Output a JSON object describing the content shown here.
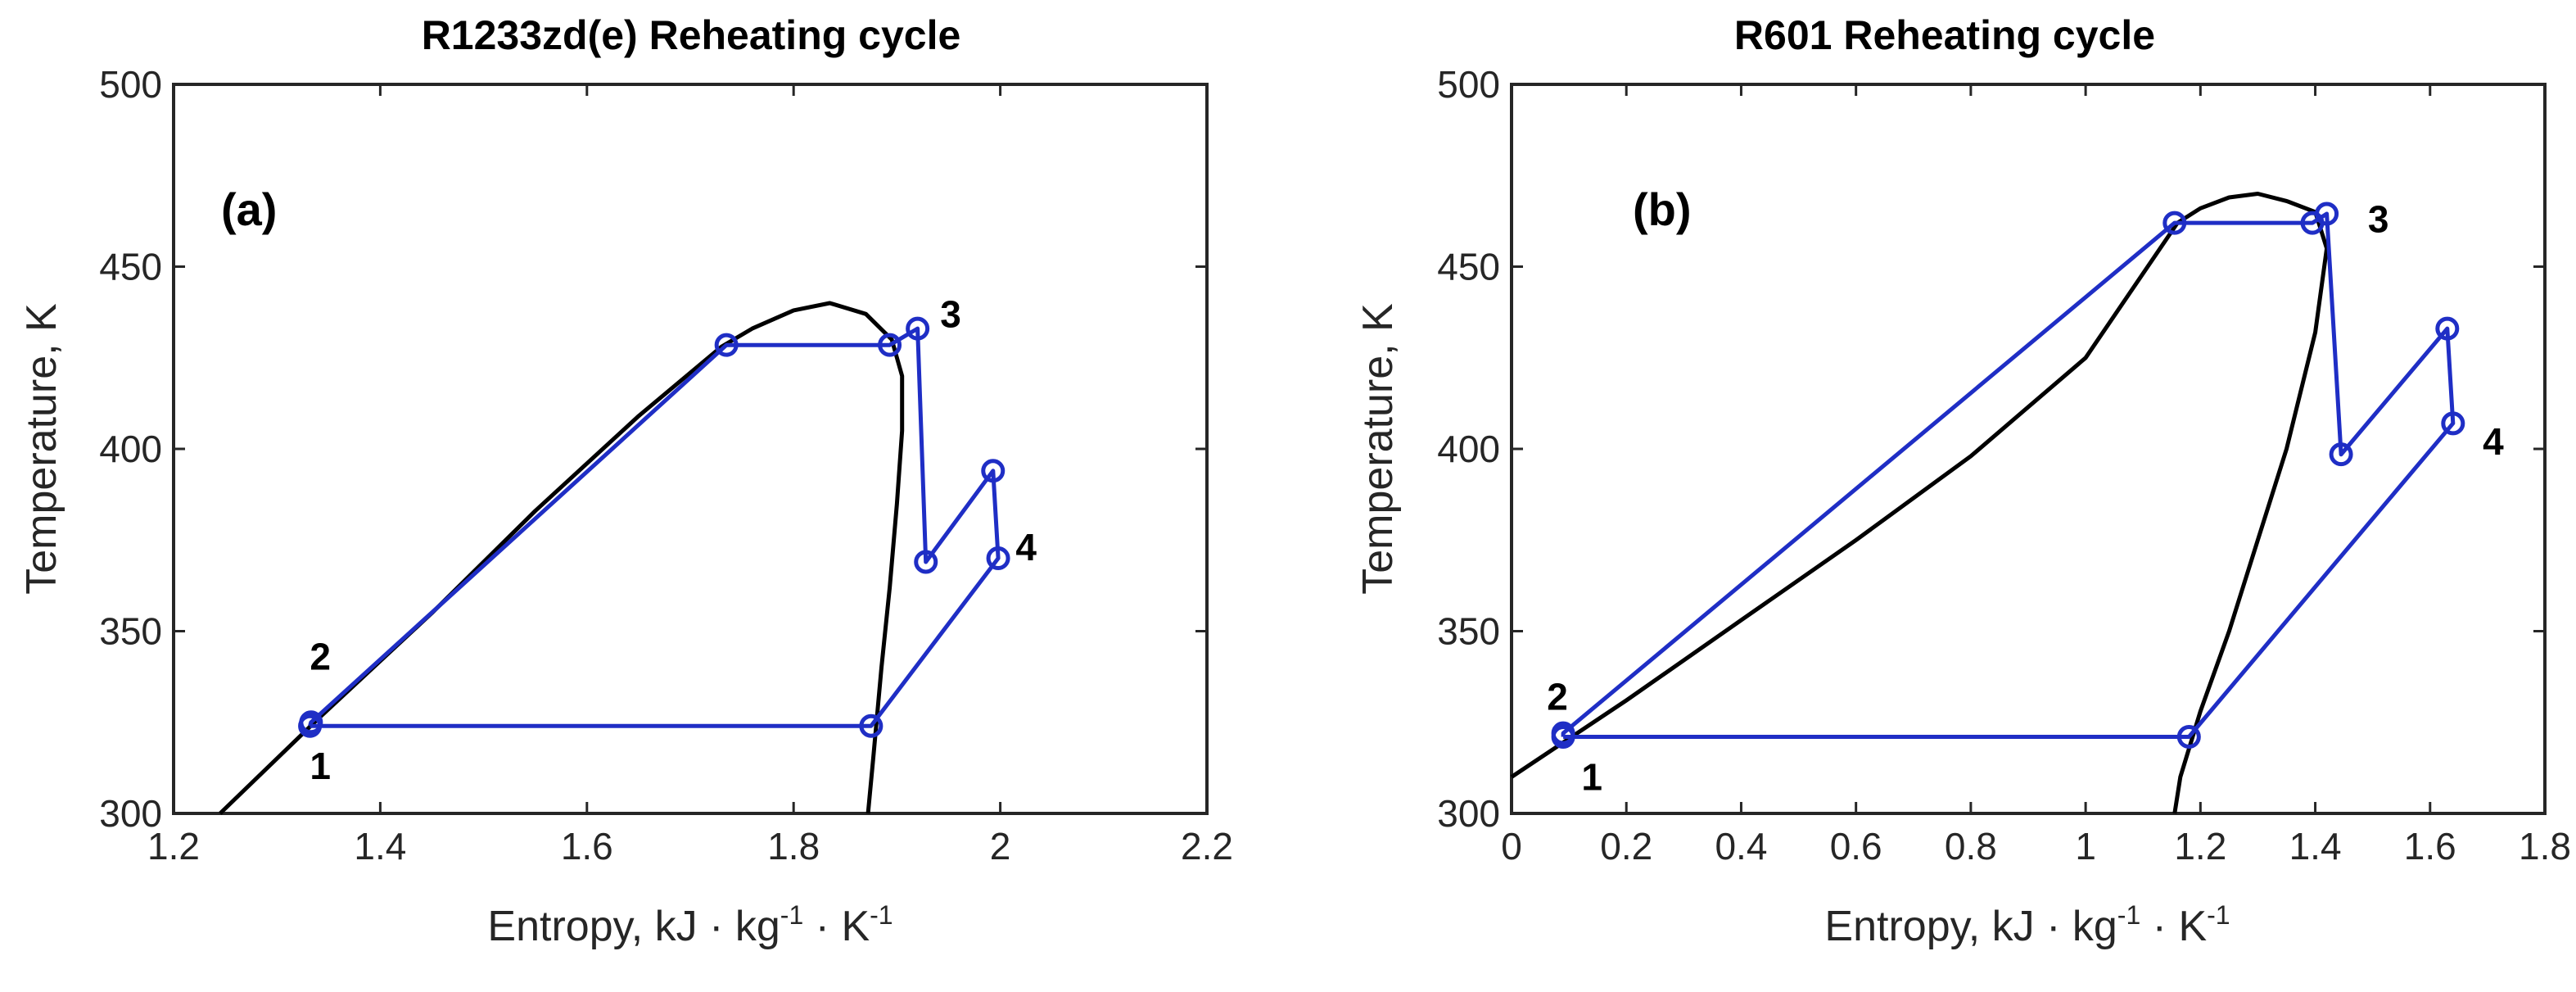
{
  "chart_data": [
    {
      "type": "line",
      "title": "R1233zd(e) Reheating cycle",
      "panel_label": "(a)",
      "ylabel": "Temperature, K",
      "xlabel": {
        "prefix": "Entropy, kJ · kg",
        "exp1": "-1",
        "mid": " · K",
        "exp2": "-1"
      },
      "xlim": [
        1.2,
        2.2
      ],
      "ylim": [
        300,
        500
      ],
      "xticks": [
        1.2,
        1.4,
        1.6,
        1.8,
        2.0,
        2.2
      ],
      "xtick_labels": [
        "1.2",
        "1.4",
        "1.6",
        "1.8",
        "2",
        "2.2"
      ],
      "yticks": [
        300,
        350,
        400,
        450,
        500
      ],
      "ytick_labels": [
        "300",
        "350",
        "400",
        "450",
        "500"
      ],
      "series": [
        {
          "name": "saturation dome",
          "color": "#000000",
          "points": [
            [
              1.245,
              300
            ],
            [
              1.34,
              326
            ],
            [
              1.45,
              355
            ],
            [
              1.55,
              383
            ],
            [
              1.65,
              409
            ],
            [
              1.73,
              428
            ],
            [
              1.76,
              433
            ],
            [
              1.8,
              438
            ],
            [
              1.835,
              440
            ],
            [
              1.87,
              437
            ],
            [
              1.895,
              430
            ],
            [
              1.905,
              420
            ],
            [
              1.905,
              405
            ],
            [
              1.9,
              385
            ],
            [
              1.893,
              362
            ],
            [
              1.885,
              340
            ],
            [
              1.877,
              315
            ],
            [
              1.872,
              300
            ]
          ]
        },
        {
          "name": "reheating cycle",
          "color": "#1f2ec5",
          "markers": [
            [
              1.332,
              324
            ],
            [
              1.333,
              325
            ],
            [
              1.735,
              428.5
            ],
            [
              1.893,
              428.5
            ],
            [
              1.92,
              433
            ],
            [
              1.928,
              369
            ],
            [
              1.993,
              394
            ],
            [
              1.998,
              370
            ],
            [
              1.875,
              324
            ]
          ],
          "points": [
            [
              1.332,
              324
            ],
            [
              1.333,
              325
            ],
            [
              1.735,
              428.5
            ],
            [
              1.893,
              428.5
            ],
            [
              1.92,
              433
            ],
            [
              1.928,
              369
            ],
            [
              1.993,
              394
            ],
            [
              1.998,
              370
            ],
            [
              1.875,
              324
            ],
            [
              1.332,
              324
            ]
          ]
        }
      ],
      "point_labels": [
        {
          "text": "1",
          "x": 1.342,
          "y": 313
        },
        {
          "text": "2",
          "x": 1.342,
          "y": 343
        },
        {
          "text": "3",
          "x": 1.952,
          "y": 437
        },
        {
          "text": "4",
          "x": 2.025,
          "y": 373
        }
      ]
    },
    {
      "type": "line",
      "title": "R601 Reheating cycle",
      "panel_label": "(b)",
      "ylabel": "Temperature, K",
      "xlabel": {
        "prefix": "Entropy, kJ · kg",
        "exp1": "-1",
        "mid": " · K",
        "exp2": "-1"
      },
      "xlim": [
        0,
        1.8
      ],
      "ylim": [
        300,
        500
      ],
      "xticks": [
        0,
        0.2,
        0.4,
        0.6,
        0.8,
        1.0,
        1.2,
        1.4,
        1.6,
        1.8
      ],
      "xtick_labels": [
        "0",
        "0.2",
        "0.4",
        "0.6",
        "0.8",
        "1",
        "1.2",
        "1.4",
        "1.6",
        "1.8"
      ],
      "yticks": [
        300,
        350,
        400,
        450,
        500
      ],
      "ytick_labels": [
        "300",
        "350",
        "400",
        "450",
        "500"
      ],
      "series": [
        {
          "name": "saturation dome",
          "color": "#000000",
          "points": [
            [
              0,
              310
            ],
            [
              0.2,
              331
            ],
            [
              0.4,
              353
            ],
            [
              0.6,
              375
            ],
            [
              0.8,
              398
            ],
            [
              1.0,
              425
            ],
            [
              1.16,
              462
            ],
            [
              1.2,
              466
            ],
            [
              1.25,
              469
            ],
            [
              1.3,
              470
            ],
            [
              1.35,
              468
            ],
            [
              1.4,
              465
            ],
            [
              1.42,
              455
            ],
            [
              1.4,
              432
            ],
            [
              1.35,
              400
            ],
            [
              1.3,
              375
            ],
            [
              1.25,
              350
            ],
            [
              1.2,
              328
            ],
            [
              1.165,
              310
            ],
            [
              1.155,
              300
            ]
          ]
        },
        {
          "name": "reheating cycle",
          "color": "#1f2ec5",
          "markers": [
            [
              0.09,
              321
            ],
            [
              0.09,
              322
            ],
            [
              1.155,
              462
            ],
            [
              1.395,
              462
            ],
            [
              1.42,
              464.5
            ],
            [
              1.445,
              398.5
            ],
            [
              1.63,
              433
            ],
            [
              1.64,
              407
            ],
            [
              1.18,
              321
            ]
          ],
          "points": [
            [
              0.09,
              321
            ],
            [
              0.09,
              322
            ],
            [
              1.155,
              462
            ],
            [
              1.395,
              462
            ],
            [
              1.42,
              464.5
            ],
            [
              1.445,
              398.5
            ],
            [
              1.63,
              433
            ],
            [
              1.64,
              407
            ],
            [
              1.18,
              321
            ],
            [
              0.09,
              321
            ]
          ]
        }
      ],
      "point_labels": [
        {
          "text": "1",
          "x": 0.14,
          "y": 310
        },
        {
          "text": "2",
          "x": 0.08,
          "y": 332
        },
        {
          "text": "3",
          "x": 1.51,
          "y": 463
        },
        {
          "text": "4",
          "x": 1.71,
          "y": 402
        }
      ]
    }
  ]
}
